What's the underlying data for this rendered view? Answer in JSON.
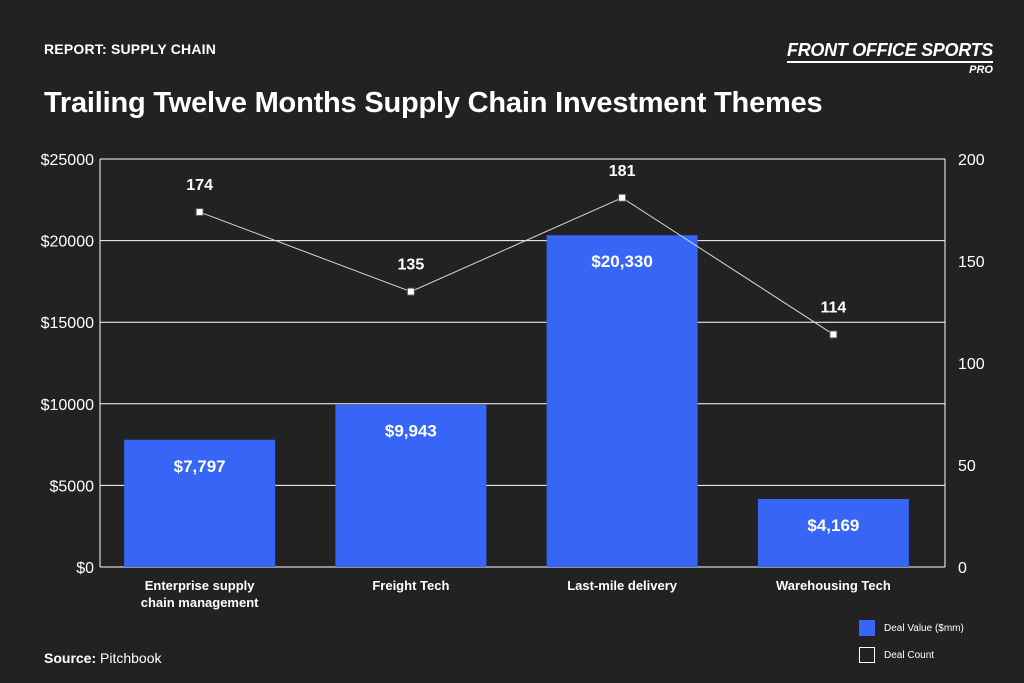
{
  "header": {
    "report_label": "REPORT: SUPPLY CHAIN",
    "brand_name": "FRONT OFFICE SPORTS",
    "brand_sub": "PRO"
  },
  "title": "Trailing Twelve Months Supply Chain Investment Themes",
  "footer": {
    "source_label": "Source:",
    "source_value": "Pitchbook"
  },
  "legend": {
    "deal_value": "Deal Value ($mm)",
    "deal_count": "Deal Count"
  },
  "colors": {
    "bar": "#3765f5",
    "line": "#d9d9d9",
    "background": "#222222",
    "grid": "#ffffff"
  },
  "chart_data": {
    "type": "bar",
    "categories": [
      [
        "Enterprise supply",
        "chain management"
      ],
      [
        "Freight Tech"
      ],
      [
        "Last-mile delivery"
      ],
      [
        "Warehousing Tech"
      ]
    ],
    "series": [
      {
        "name": "Deal Value ($mm)",
        "type": "bar",
        "axis": "left",
        "values": [
          7797,
          9943,
          20330,
          4169
        ],
        "labels": [
          "$7,797",
          "$9,943",
          "$20,330",
          "$4,169"
        ]
      },
      {
        "name": "Deal Count",
        "type": "line",
        "axis": "right",
        "values": [
          174,
          135,
          181,
          114
        ],
        "labels": [
          "174",
          "135",
          "181",
          "114"
        ]
      }
    ],
    "y_left": {
      "ylim": [
        0,
        25000
      ],
      "ticks": [
        0,
        5000,
        10000,
        15000,
        20000,
        25000
      ],
      "tick_labels": [
        "$0",
        "$5000",
        "$10000",
        "$15000",
        "$20000",
        "$25000"
      ]
    },
    "y_right": {
      "ylim": [
        0,
        200
      ],
      "ticks": [
        0,
        50,
        100,
        150,
        200
      ],
      "tick_labels": [
        "0",
        "50",
        "100",
        "150",
        "200"
      ]
    },
    "grid": true,
    "legend_position": "bottom-right"
  }
}
